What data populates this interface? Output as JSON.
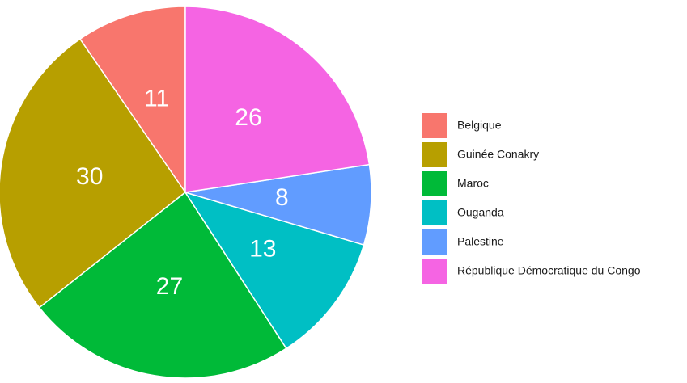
{
  "chart_data": {
    "type": "pie",
    "categories": [
      "Belgique",
      "Guinée Conakry",
      "Maroc",
      "Ouganda",
      "Palestine",
      "République Démocratique du Congo"
    ],
    "values": [
      11,
      30,
      27,
      13,
      8,
      26
    ],
    "colors": [
      "#F8766D",
      "#B79F00",
      "#00BA38",
      "#00BFC4",
      "#619CFF",
      "#F564E3"
    ],
    "legend": "right"
  }
}
